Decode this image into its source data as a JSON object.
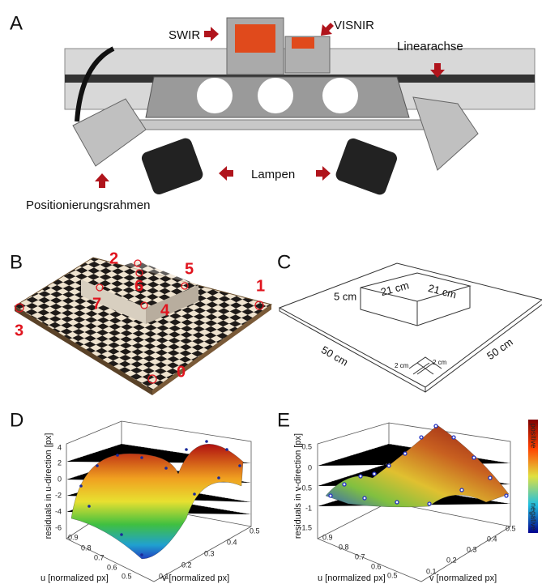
{
  "panel_a": {
    "label": "A",
    "callouts": {
      "swir": "SWIR",
      "visnir": "VISNIR",
      "linear_axis": "Linearachse",
      "lamps": "Lampen",
      "frame": "Positionierungsrahmen"
    }
  },
  "panel_b": {
    "label": "B",
    "points": [
      0,
      1,
      2,
      3,
      4,
      5,
      6,
      7
    ]
  },
  "panel_c": {
    "label": "C",
    "dimensions": {
      "height": "5 cm",
      "top_left": "21 cm",
      "top_right": "21 cm",
      "base_left": "50 cm",
      "base_right": "50 cm",
      "square_a": "2 cm",
      "square_b": "2 cm"
    }
  },
  "panel_d": {
    "label": "D",
    "z_label": "residuals in u-direction [px]",
    "u_label": "u [normalized px]",
    "v_label": "v [normalized px]",
    "z_ticks": [
      4,
      2,
      0,
      -2,
      -4,
      -6
    ],
    "u_ticks": [
      0.9,
      0.8,
      0.7,
      0.6,
      0.5
    ],
    "v_ticks": [
      0.1,
      0.2,
      0.3,
      0.4,
      0.5
    ]
  },
  "panel_e": {
    "label": "E",
    "z_label": "residuals in v-direction [px]",
    "u_label": "u [normalized px]",
    "v_label": "v [normalized px]",
    "z_ticks": [
      0.5,
      0,
      -0.5,
      -1,
      -1.5
    ],
    "u_ticks": [
      0.9,
      0.8,
      0.7,
      0.6,
      0.5
    ],
    "v_ticks": [
      0.1,
      0.2,
      0.3,
      0.4,
      0.5
    ],
    "colorbar": {
      "top": "positive",
      "bottom": "negative"
    }
  }
}
